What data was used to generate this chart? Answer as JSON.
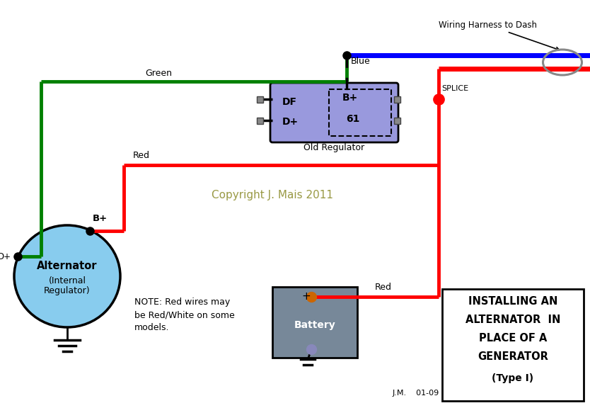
{
  "bg_color": "#ffffff",
  "copyright_text": "Copyright J. Mais 2011",
  "copyright_color": "#999944",
  "jm_text": "J.M.    01-09",
  "wiring_harness_label": "Wiring Harness to Dash",
  "splice_label": "SPLICE",
  "note_text": "NOTE: Red wires may\nbe Red/White on some\nmodels.",
  "green_label": "Green",
  "red_label1": "Red",
  "red_label2": "Red",
  "blue_label": "Blue",
  "reg_label": "Old Regulator",
  "alt_text1": "Alternator",
  "alt_text2": "(Internal",
  "alt_text3": "Regulator)",
  "bat_label": "Battery",
  "bplus_label": "B+",
  "df_label": "DF",
  "dplus_label": "D+",
  "61_label": "61",
  "title_lines": [
    "INSTALLING AN",
    "ALTERNATOR  IN",
    "PLACE OF A",
    "GENERATOR",
    "(Type I)"
  ],
  "alternator_color": "#88ccee",
  "battery_color": "#778899",
  "reg_color": "#9999dd",
  "wire_lw": 3.5,
  "thick_lw": 5.0,
  "dash_lw": 2.5
}
